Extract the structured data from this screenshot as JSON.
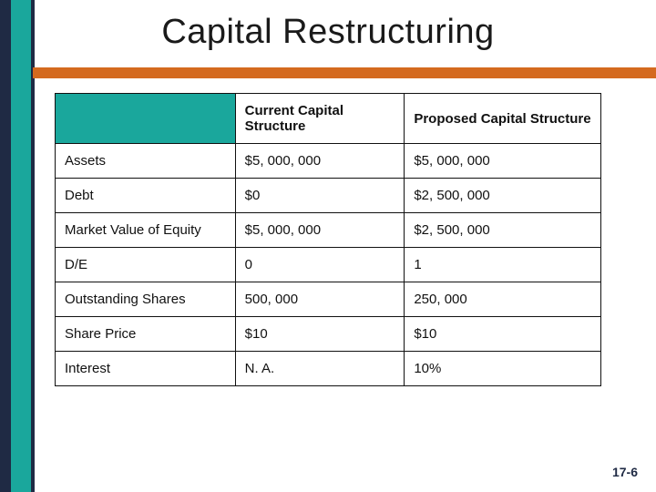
{
  "slide": {
    "title": "Capital Restructuring",
    "page_number": "17-6",
    "accent_colors": {
      "left_dark": "#1f2a44",
      "left_teal": "#1aa79c",
      "orange_bar": "#d46a1f",
      "border": "#111111",
      "background": "#ffffff"
    }
  },
  "table": {
    "type": "table",
    "columns": [
      "",
      "Current Capital Structure",
      "Proposed  Capital Structure"
    ],
    "column_widths_pct": [
      33,
      31,
      36
    ],
    "header_bg_blank": "#1aa79c",
    "cell_fontsize": 15,
    "header_fontweight": 700,
    "rows": [
      {
        "label": "Assets",
        "current": "$5, 000, 000",
        "proposed": "$5, 000, 000"
      },
      {
        "label": "Debt",
        "current": "$0",
        "proposed": "$2, 500, 000"
      },
      {
        "label": "Market Value of Equity",
        "current": "$5, 000, 000",
        "proposed": "$2, 500, 000"
      },
      {
        "label": "D/E",
        "current": "0",
        "proposed": "1"
      },
      {
        "label": "Outstanding Shares",
        "current": "500, 000",
        "proposed": "250, 000"
      },
      {
        "label": "Share Price",
        "current": "$10",
        "proposed": "$10"
      },
      {
        "label": "Interest",
        "current": "N. A.",
        "proposed": "10%"
      }
    ]
  }
}
